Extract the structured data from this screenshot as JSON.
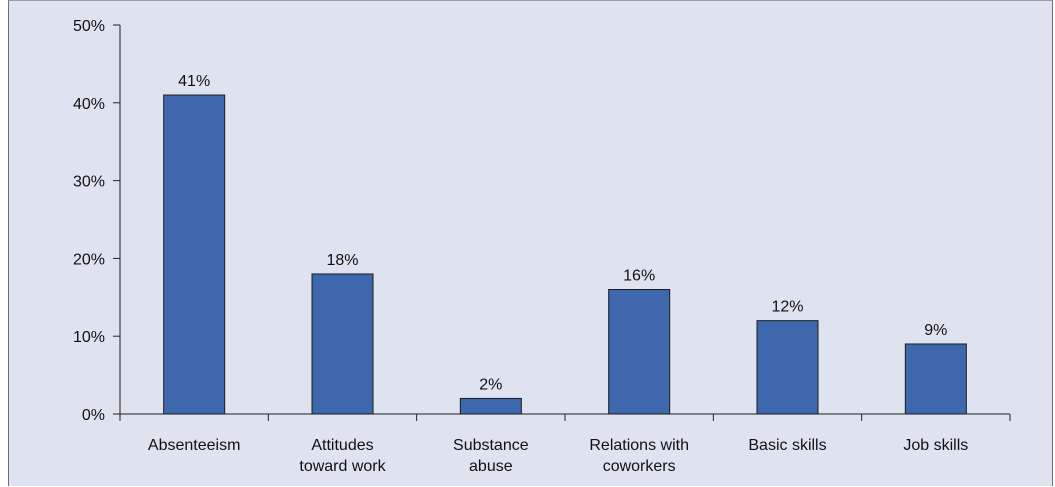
{
  "chart_data": {
    "type": "bar",
    "title": "",
    "xlabel": "",
    "ylabel": "",
    "categories": [
      [
        "Absenteeism"
      ],
      [
        "Attitudes",
        "toward work"
      ],
      [
        "Substance",
        "abuse"
      ],
      [
        "Relations with",
        "coworkers"
      ],
      [
        "Basic skills"
      ],
      [
        "Job skills"
      ]
    ],
    "values": [
      41,
      18,
      2,
      16,
      12,
      9
    ],
    "value_labels": [
      "41%",
      "18%",
      "2%",
      "16%",
      "12%",
      "9%"
    ],
    "ylim": [
      0,
      50
    ],
    "yticks": [
      0,
      10,
      20,
      30,
      40,
      50
    ],
    "ytick_labels": [
      "0%",
      "10%",
      "20%",
      "30%",
      "40%",
      "50%"
    ],
    "grid": false,
    "colors": {
      "bar": "#3f67ae",
      "background": "#dfe3ef"
    }
  }
}
